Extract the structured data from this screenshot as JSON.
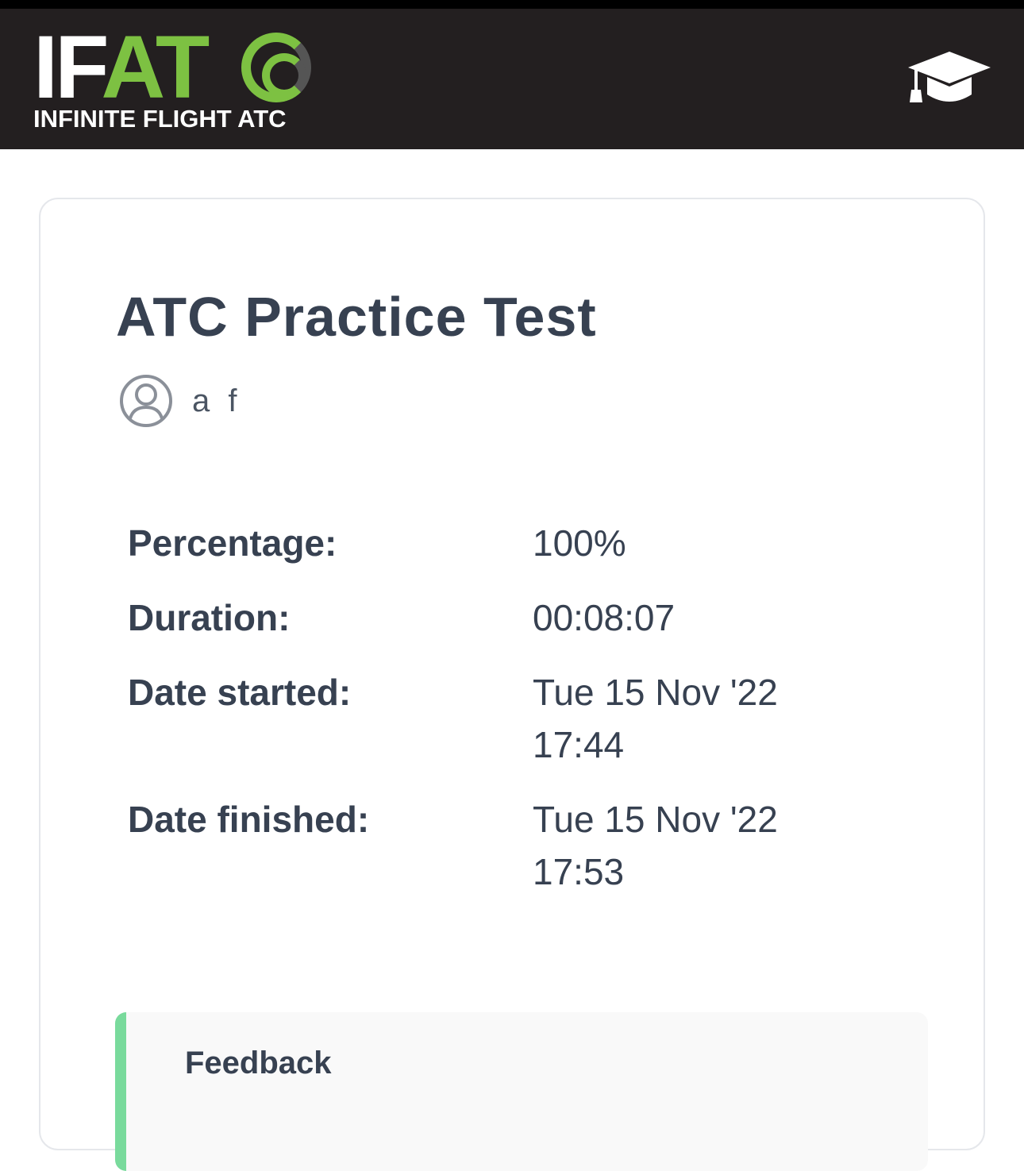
{
  "header": {
    "logo": {
      "letters_white": "IF",
      "letters_green": "AT",
      "subtitle": "INFINITE FLIGHT ATC"
    },
    "icon": "graduation-cap-icon"
  },
  "card": {
    "title": "ATC Practice Test",
    "user": {
      "icon": "user-circle-icon",
      "name": "a f"
    },
    "details": [
      {
        "label": "Percentage:",
        "value": "100%"
      },
      {
        "label": "Duration:",
        "value": "00:08:07"
      },
      {
        "label": "Date started:",
        "value": "Tue 15 Nov '22 17:44"
      },
      {
        "label": "Date finished:",
        "value": "Tue 15 Nov '22 17:53"
      }
    ],
    "feedback": {
      "title": "Feedback",
      "accent": "#79da9c"
    }
  },
  "colors": {
    "brand_green": "#7dc142",
    "header_bg": "#231f20"
  }
}
